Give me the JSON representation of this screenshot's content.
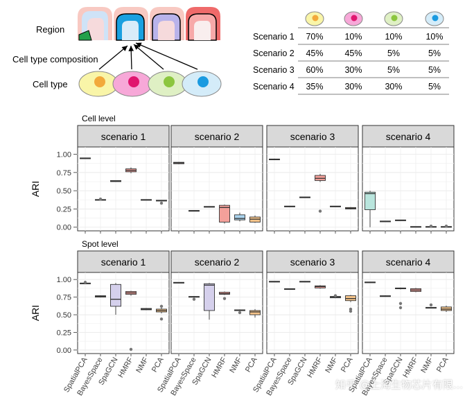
{
  "schematic": {
    "row_labels": {
      "region": "Region",
      "composition": "Cell type composition",
      "cell_type": "Cell type"
    },
    "cell_colors": [
      {
        "outer": "#f9f5a8",
        "inner": "#f2a93b"
      },
      {
        "outer": "#f7a8d8",
        "inner": "#e0166f"
      },
      {
        "outer": "#dff0c4",
        "inner": "#8cc63f"
      },
      {
        "outer": "#d4ecf9",
        "inner": "#1a9ae0"
      }
    ]
  },
  "composition_table": {
    "rows": [
      {
        "label": "Scenario 1",
        "values": [
          "70%",
          "10%",
          "10%",
          "10%"
        ]
      },
      {
        "label": "Scenario 2",
        "values": [
          "45%",
          "45%",
          "5%",
          "5%"
        ]
      },
      {
        "label": "Scenario 3",
        "values": [
          "60%",
          "30%",
          "5%",
          "5%"
        ]
      },
      {
        "label": "Scenario 4",
        "values": [
          "35%",
          "30%",
          "30%",
          "5%"
        ]
      }
    ]
  },
  "chart_data": [
    {
      "type": "boxplot",
      "title": "Cell level",
      "ylabel": "ARI",
      "ylim": [
        -0.05,
        1.1
      ],
      "yticks": [
        "0.00",
        "0.25",
        "0.50",
        "0.75",
        "1.00"
      ],
      "methods": [
        "SpatialPCA",
        "BayesSpace",
        "SpaGCN",
        "HMRF",
        "NMF",
        "PCA"
      ],
      "method_colors": [
        "#f8766d",
        "#b79f00",
        "#00ba38",
        "#f4a09a",
        "#619cff",
        "#f5a623"
      ],
      "panels": [
        {
          "title": "scenario 1",
          "boxes": [
            {
              "q1": 0.94,
              "med": 0.945,
              "q3": 0.95,
              "lo": 0.94,
              "hi": 0.95,
              "fill": "#f6d0cf",
              "out": []
            },
            {
              "q1": 0.37,
              "med": 0.375,
              "q3": 0.38,
              "lo": 0.37,
              "hi": 0.38,
              "fill": "#f0e4c0",
              "out": [
                0.385
              ]
            },
            {
              "q1": 0.625,
              "med": 0.63,
              "q3": 0.64,
              "lo": 0.625,
              "hi": 0.64,
              "fill": "#cfe8d0",
              "out": []
            },
            {
              "q1": 0.76,
              "med": 0.78,
              "q3": 0.8,
              "lo": 0.74,
              "hi": 0.82,
              "fill": "#f4a09a",
              "out": []
            },
            {
              "q1": 0.37,
              "med": 0.375,
              "q3": 0.38,
              "lo": 0.37,
              "hi": 0.38,
              "fill": "#d5dcf2",
              "out": []
            },
            {
              "q1": 0.36,
              "med": 0.365,
              "q3": 0.37,
              "lo": 0.36,
              "hi": 0.37,
              "fill": "#f5d9a8",
              "out": [
                0.33
              ]
            }
          ]
        },
        {
          "title": "scenario 2",
          "boxes": [
            {
              "q1": 0.87,
              "med": 0.88,
              "q3": 0.89,
              "lo": 0.865,
              "hi": 0.895,
              "fill": "#f6d0cf",
              "out": []
            },
            {
              "q1": 0.22,
              "med": 0.225,
              "q3": 0.23,
              "lo": 0.22,
              "hi": 0.23,
              "fill": "#f0e4c0",
              "out": []
            },
            {
              "q1": 0.275,
              "med": 0.28,
              "q3": 0.285,
              "lo": 0.275,
              "hi": 0.285,
              "fill": "#cfe8d0",
              "out": []
            },
            {
              "q1": 0.07,
              "med": 0.27,
              "q3": 0.3,
              "lo": 0.05,
              "hi": 0.31,
              "fill": "#f4a09a",
              "out": []
            },
            {
              "q1": 0.1,
              "med": 0.12,
              "q3": 0.17,
              "lo": 0.08,
              "hi": 0.2,
              "fill": "#aad4ef",
              "out": []
            },
            {
              "q1": 0.07,
              "med": 0.11,
              "q3": 0.14,
              "lo": 0.06,
              "hi": 0.16,
              "fill": "#f5c48a",
              "out": []
            }
          ]
        },
        {
          "title": "scenario 3",
          "boxes": [
            {
              "q1": 0.925,
              "med": 0.93,
              "q3": 0.935,
              "lo": 0.92,
              "hi": 0.94,
              "fill": "#f6d0cf",
              "out": []
            },
            {
              "q1": 0.28,
              "med": 0.285,
              "q3": 0.29,
              "lo": 0.28,
              "hi": 0.29,
              "fill": "#f0e4c0",
              "out": []
            },
            {
              "q1": 0.405,
              "med": 0.41,
              "q3": 0.415,
              "lo": 0.405,
              "hi": 0.415,
              "fill": "#cfe8d0",
              "out": []
            },
            {
              "q1": 0.64,
              "med": 0.67,
              "q3": 0.71,
              "lo": 0.62,
              "hi": 0.73,
              "fill": "#f4a09a",
              "out": [
                0.22
              ]
            },
            {
              "q1": 0.28,
              "med": 0.285,
              "q3": 0.29,
              "lo": 0.28,
              "hi": 0.29,
              "fill": "#d5dcf2",
              "out": []
            },
            {
              "q1": 0.25,
              "med": 0.26,
              "q3": 0.27,
              "lo": 0.245,
              "hi": 0.275,
              "fill": "#f5c48a",
              "out": []
            }
          ]
        },
        {
          "title": "scenario 4",
          "boxes": [
            {
              "q1": 0.24,
              "med": 0.46,
              "q3": 0.48,
              "lo": 0.0,
              "hi": 0.5,
              "fill": "#b9e5dd",
              "out": []
            },
            {
              "q1": 0.075,
              "med": 0.08,
              "q3": 0.085,
              "lo": 0.075,
              "hi": 0.085,
              "fill": "#f0e4c0",
              "out": []
            },
            {
              "q1": 0.09,
              "med": 0.095,
              "q3": 0.1,
              "lo": 0.09,
              "hi": 0.1,
              "fill": "#cfe8d0",
              "out": []
            },
            {
              "q1": 0.0,
              "med": 0.005,
              "q3": 0.01,
              "lo": 0.0,
              "hi": 0.01,
              "fill": "#f4a09a",
              "out": []
            },
            {
              "q1": 0.0,
              "med": 0.005,
              "q3": 0.01,
              "lo": 0.0,
              "hi": 0.01,
              "fill": "#d5dcf2",
              "out": [
                0.015
              ]
            },
            {
              "q1": 0.0,
              "med": 0.005,
              "q3": 0.01,
              "lo": 0.0,
              "hi": 0.01,
              "fill": "#f5d9a8",
              "out": [
                0.015
              ]
            }
          ]
        }
      ]
    },
    {
      "type": "boxplot",
      "title": "Spot level",
      "ylabel": "ARI",
      "ylim": [
        -0.05,
        1.1
      ],
      "yticks": [
        "0.00",
        "0.25",
        "0.50",
        "0.75",
        "1.00"
      ],
      "methods": [
        "SpatialPCA",
        "BayesSpace",
        "SpaGCN",
        "HMRF",
        "NMF",
        "PCA"
      ],
      "panels": [
        {
          "title": "scenario 1",
          "boxes": [
            {
              "q1": 0.94,
              "med": 0.945,
              "q3": 0.95,
              "lo": 0.94,
              "hi": 0.96,
              "fill": "#f6d0cf",
              "out": [
                0.96
              ]
            },
            {
              "q1": 0.75,
              "med": 0.76,
              "q3": 0.77,
              "lo": 0.745,
              "hi": 0.775,
              "fill": "#f0e4c0",
              "out": []
            },
            {
              "q1": 0.62,
              "med": 0.72,
              "q3": 0.93,
              "lo": 0.5,
              "hi": 0.95,
              "fill": "#d5d0ec",
              "out": []
            },
            {
              "q1": 0.79,
              "med": 0.81,
              "q3": 0.83,
              "lo": 0.77,
              "hi": 0.84,
              "fill": "#f4a09a",
              "out": [
                0.01
              ]
            },
            {
              "q1": 0.57,
              "med": 0.58,
              "q3": 0.59,
              "lo": 0.565,
              "hi": 0.595,
              "fill": "#d5dcf2",
              "out": []
            },
            {
              "q1": 0.54,
              "med": 0.56,
              "q3": 0.58,
              "lo": 0.52,
              "hi": 0.6,
              "fill": "#f5c48a",
              "out": [
                0.62,
                0.44
              ]
            }
          ]
        },
        {
          "title": "scenario 2",
          "boxes": [
            {
              "q1": 0.95,
              "med": 0.955,
              "q3": 0.96,
              "lo": 0.95,
              "hi": 0.96,
              "fill": "#f6d0cf",
              "out": []
            },
            {
              "q1": 0.75,
              "med": 0.755,
              "q3": 0.76,
              "lo": 0.745,
              "hi": 0.765,
              "fill": "#f0e4c0",
              "out": [
                0.72
              ]
            },
            {
              "q1": 0.56,
              "med": 0.92,
              "q3": 0.94,
              "lo": 0.43,
              "hi": 0.95,
              "fill": "#d5d0ec",
              "out": []
            },
            {
              "q1": 0.79,
              "med": 0.8,
              "q3": 0.82,
              "lo": 0.78,
              "hi": 0.83,
              "fill": "#f4a09a",
              "out": [
                0.73
              ]
            },
            {
              "q1": 0.56,
              "med": 0.565,
              "q3": 0.57,
              "lo": 0.555,
              "hi": 0.575,
              "fill": "#d5dcf2",
              "out": [
                0.53
              ]
            },
            {
              "q1": 0.5,
              "med": 0.54,
              "q3": 0.56,
              "lo": 0.46,
              "hi": 0.58,
              "fill": "#f5c48a",
              "out": []
            }
          ]
        },
        {
          "title": "scenario 3",
          "boxes": [
            {
              "q1": 0.965,
              "med": 0.97,
              "q3": 0.975,
              "lo": 0.965,
              "hi": 0.975,
              "fill": "#f6d0cf",
              "out": []
            },
            {
              "q1": 0.86,
              "med": 0.865,
              "q3": 0.87,
              "lo": 0.86,
              "hi": 0.87,
              "fill": "#f0e4c0",
              "out": []
            },
            {
              "q1": 0.965,
              "med": 0.97,
              "q3": 0.975,
              "lo": 0.965,
              "hi": 0.975,
              "fill": "#cfe8d0",
              "out": []
            },
            {
              "q1": 0.88,
              "med": 0.9,
              "q3": 0.91,
              "lo": 0.87,
              "hi": 0.92,
              "fill": "#f4a09a",
              "out": []
            },
            {
              "q1": 0.74,
              "med": 0.75,
              "q3": 0.76,
              "lo": 0.735,
              "hi": 0.765,
              "fill": "#d5dcf2",
              "out": [
                0.77
              ]
            },
            {
              "q1": 0.7,
              "med": 0.73,
              "q3": 0.77,
              "lo": 0.68,
              "hi": 0.78,
              "fill": "#f5c48a",
              "out": [
                0.58,
                0.55
              ]
            }
          ]
        },
        {
          "title": "scenario 4",
          "boxes": [
            {
              "q1": 0.955,
              "med": 0.96,
              "q3": 0.965,
              "lo": 0.955,
              "hi": 0.965,
              "fill": "#f6d0cf",
              "out": []
            },
            {
              "q1": 0.76,
              "med": 0.765,
              "q3": 0.77,
              "lo": 0.755,
              "hi": 0.775,
              "fill": "#f0e4c0",
              "out": []
            },
            {
              "q1": 0.87,
              "med": 0.875,
              "q3": 0.88,
              "lo": 0.86,
              "hi": 0.885,
              "fill": "#d5d0ec",
              "out": [
                0.66,
                0.6
              ]
            },
            {
              "q1": 0.83,
              "med": 0.85,
              "q3": 0.87,
              "lo": 0.82,
              "hi": 0.88,
              "fill": "#f4a09a",
              "out": []
            },
            {
              "q1": 0.595,
              "med": 0.6,
              "q3": 0.605,
              "lo": 0.59,
              "hi": 0.61,
              "fill": "#d5dcf2",
              "out": [
                0.64
              ]
            },
            {
              "q1": 0.56,
              "med": 0.58,
              "q3": 0.61,
              "lo": 0.54,
              "hi": 0.63,
              "fill": "#f5c48a",
              "out": []
            }
          ]
        }
      ]
    }
  ],
  "watermark": "知乎 @上海生物芯片有限..."
}
